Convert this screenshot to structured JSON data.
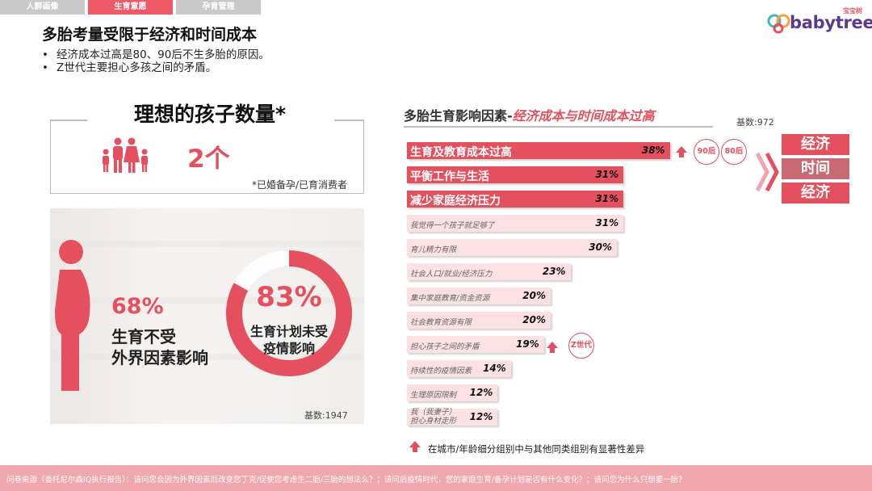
{
  "tabs": [
    {
      "label": "人群画像",
      "active": false
    },
    {
      "label": "生育意愿",
      "active": true
    },
    {
      "label": "孕育管理",
      "active": false
    }
  ],
  "logo": {
    "cn": "宝宝树",
    "text": "babytree"
  },
  "title": "多胎考量受限于经济和时间成本",
  "bullets": [
    "经济成本过高是80、90后不生多胎的原因。",
    "Z世代主要担心多孩之间的矛盾。"
  ],
  "ideal": {
    "title": "理想的孩子数量*",
    "value": "2个",
    "note": "*已婚备孕/已育消费者",
    "icon": "family-icon"
  },
  "photo_panel": {
    "stat1": {
      "value": "68%",
      "line1": "生育不受",
      "line2": "外界因素影响",
      "icon": "pregnant-woman-icon"
    },
    "stat2": {
      "value": "83%",
      "fraction": 0.83,
      "line1": "生育计划未受",
      "line2": "疫情影响"
    },
    "base": "基数:1947"
  },
  "chart_heading": {
    "prefix": "多胎生育影响因素-",
    "highlight": "经济成本与时间成本过高"
  },
  "chart_base": "基数:972",
  "chart_data": {
    "type": "bar",
    "orientation": "horizontal",
    "title": "多胎生育影响因素-经济成本与时间成本过高",
    "categories": [
      "生育及教育成本过高",
      "平衡工作与生活",
      "减少家庭经济压力",
      "我觉得一个孩子就足够了",
      "育儿精力有限",
      "社会人口/就业/经济压力",
      "集中家庭教育/资金资源",
      "社会教育资源有限",
      "担心孩子之间的矛盾",
      "持续性的疫情因素",
      "生理原因限制",
      "我（我妻子）担心身材走形"
    ],
    "values": [
      38,
      31,
      31,
      31,
      30,
      23,
      20,
      20,
      19,
      14,
      12,
      12
    ],
    "value_labels": [
      "38%",
      "31%",
      "31%",
      "31%",
      "30%",
      "23%",
      "20%",
      "20%",
      "19%",
      "14%",
      "12%",
      "12%"
    ],
    "highlighted": [
      true,
      true,
      true,
      false,
      false,
      false,
      false,
      false,
      false,
      false,
      false,
      false
    ],
    "unit": "%",
    "highlight_color": "#e5505f",
    "base_color": "#fbe1e3"
  },
  "annotations": {
    "row0_badges": [
      "90后",
      "80后"
    ],
    "row8_badge": "Z世代",
    "arrow_color": "#e5505f"
  },
  "factors": [
    {
      "label": "经济",
      "color": "#e5505f"
    },
    {
      "label": "时间",
      "color": "#c86a74"
    },
    {
      "label": "经济",
      "color": "#e5505f"
    }
  ],
  "legend_note": "在城市/年龄细分组别中与其他同类组别有显著性差异",
  "footer": "问卷来源（委托尼尔森IQ执行报告）：请问您会因为外界因素而改变您丁克/促使您考虑生二胎/三胎的想法么？；请问后疫情时代，您的家庭生育/备孕计划是否有什么变化？；请问您为什么只想要一胎？"
}
